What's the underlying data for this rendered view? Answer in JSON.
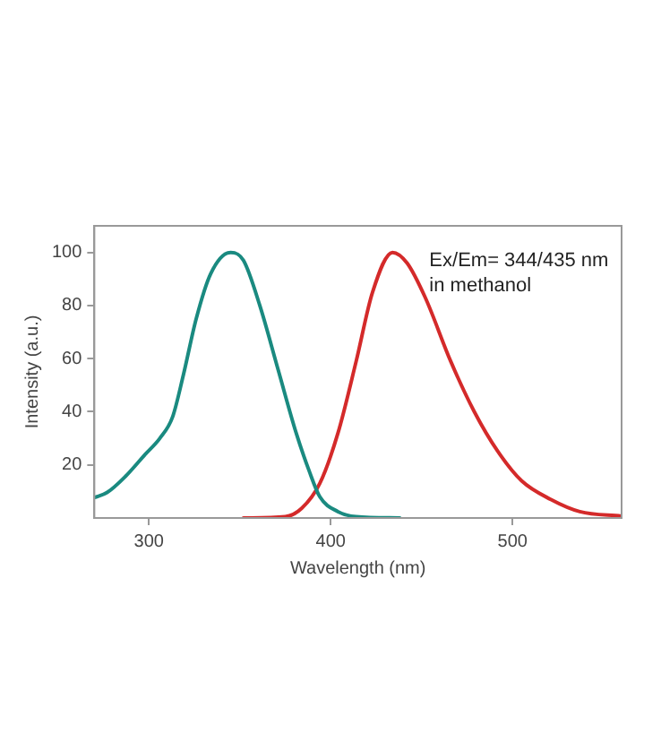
{
  "chart_data": {
    "type": "line",
    "xlabel": "Wavelength (nm)",
    "ylabel": "Intensity (a.u.)",
    "annotations": [
      "Ex/Em= 344/435 nm",
      "in methanol"
    ],
    "xlim": [
      270,
      560
    ],
    "xticks": [
      300,
      400,
      500
    ],
    "ylim": [
      0,
      110
    ],
    "yticks": [
      20,
      40,
      60,
      80,
      100
    ],
    "grid": false,
    "legend": false,
    "marker": "none",
    "line_style": "solid",
    "series": [
      {
        "color": "#1a8a80",
        "x": [
          270,
          277,
          287,
          298,
          306,
          313,
          319,
          326,
          334,
          345,
          352,
          361,
          371,
          381,
          388,
          394,
          404,
          414,
          438
        ],
        "values": [
          7.7,
          9.6,
          15.6,
          24,
          30,
          38,
          54,
          75,
          92,
          100,
          97,
          80,
          56,
          32,
          18,
          8,
          2.4,
          0.5,
          0
        ]
      },
      {
        "color": "#d42a2a",
        "x": [
          352,
          375,
          384,
          394,
          404,
          414,
          423,
          434,
          442,
          452,
          466,
          479,
          492,
          505,
          521,
          537,
          560
        ],
        "values": [
          0,
          0.5,
          3.6,
          13,
          32,
          59,
          85,
          100,
          96,
          83,
          59,
          40,
          25,
          14,
          7,
          2.4,
          0.7
        ]
      }
    ]
  }
}
